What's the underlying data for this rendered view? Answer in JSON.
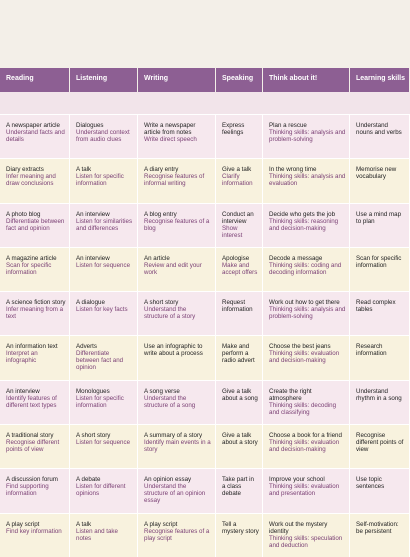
{
  "table": {
    "headers": [
      "Reading",
      "Listening",
      "Writing",
      "Speaking",
      "Think about it!",
      "Learning skills"
    ],
    "rows": [
      [
        [
          "A newspaper article",
          "Understand facts and details"
        ],
        [
          "Dialogues",
          "Understand context from audio clues"
        ],
        [
          "Write a newspaper article from notes",
          "Write direct speech"
        ],
        [
          "Express feelings"
        ],
        [
          "Plan a rescue",
          "Thinking skills: analysis and problem-solving"
        ],
        [
          "Understand nouns and verbs"
        ]
      ],
      [
        [
          "Diary extracts",
          "Infer meaning and draw conclusions"
        ],
        [
          "A talk",
          "Listen for specific information"
        ],
        [
          "A diary entry",
          "Recognise features of informal writing"
        ],
        [
          "Give a talk",
          "Clarify information"
        ],
        [
          "In the wrong time",
          "Thinking skills: analysis and evaluation"
        ],
        [
          "Memorise new vocabulary"
        ]
      ],
      [
        [
          "A photo blog",
          "Differentiate between fact and opinion"
        ],
        [
          "An interview",
          "Listen for similarities and differences"
        ],
        [
          "A blog entry",
          "Recognise features of a blog"
        ],
        [
          "Conduct an interview",
          "Show interest"
        ],
        [
          "Decide who gets the job",
          "Thinking skills: reasoning and decision-making"
        ],
        [
          "Use a mind map to plan"
        ]
      ],
      [
        [
          "A magazine article",
          "Scan for specific information"
        ],
        [
          "An interview",
          "Listen for sequence"
        ],
        [
          "An article",
          "Review and edit your work"
        ],
        [
          "Apologise",
          "Make and accept offers"
        ],
        [
          "Decode a message",
          "Thinking skills: coding and decoding information"
        ],
        [
          "Scan for specific information"
        ]
      ],
      [
        [
          "A science fiction story",
          "Infer meaning from a text"
        ],
        [
          "A dialogue",
          "Listen for key facts"
        ],
        [
          "A short story",
          "Understand the structure of a story"
        ],
        [
          "Request information"
        ],
        [
          "Work out how to get there",
          "Thinking skills: analysis and problem-solving"
        ],
        [
          "Read complex tables"
        ]
      ],
      [
        [
          "An information text",
          "Interpret an infographic"
        ],
        [
          "Adverts",
          "Differentiate between fact and opinion"
        ],
        [
          "Use an infographic to write about a process"
        ],
        [
          "Make and perform a radio advert"
        ],
        [
          "Choose the best jeans",
          "Thinking skills: evaluation and decision-making"
        ],
        [
          "Research information"
        ]
      ],
      [
        [
          "An interview",
          "Identify features of different text types"
        ],
        [
          "Monologues",
          "Listen for specific information"
        ],
        [
          "A song verse",
          "Understand the structure of a song"
        ],
        [
          "Give a talk about a song"
        ],
        [
          "Create the right atmosphere",
          "Thinking skills: decoding and classifying"
        ],
        [
          "Understand rhythm in a song"
        ]
      ],
      [
        [
          "A traditional story",
          "Recognise different points of view"
        ],
        [
          "A short story",
          "Listen for sequence"
        ],
        [
          "A summary of a story",
          "Identify main events in a story"
        ],
        [
          "Give a talk about a story"
        ],
        [
          "Choose a book for a friend",
          "Thinking skills: evaluation and decision-making"
        ],
        [
          "Recognise different points of view"
        ]
      ],
      [
        [
          "A discussion forum",
          "Find supporting information"
        ],
        [
          "A debate",
          "Listen for different opinions"
        ],
        [
          "An opinion essay",
          "Understand the structure of an opinion essay"
        ],
        [
          "Take part in a class debate"
        ],
        [
          "Improve your school",
          "Thinking skills: evaluation and presentation"
        ],
        [
          "Use topic sentences"
        ]
      ],
      [
        [
          "A play script",
          "Find key information"
        ],
        [
          "A talk",
          "Listen and take notes"
        ],
        [
          "A play script",
          "Recognise features of a play script"
        ],
        [
          "Tell a mystery story"
        ],
        [
          "Work out the mystery identity",
          "Thinking skills: speculation and deduction"
        ],
        [
          "Self-motivation: be persistent"
        ]
      ]
    ]
  }
}
